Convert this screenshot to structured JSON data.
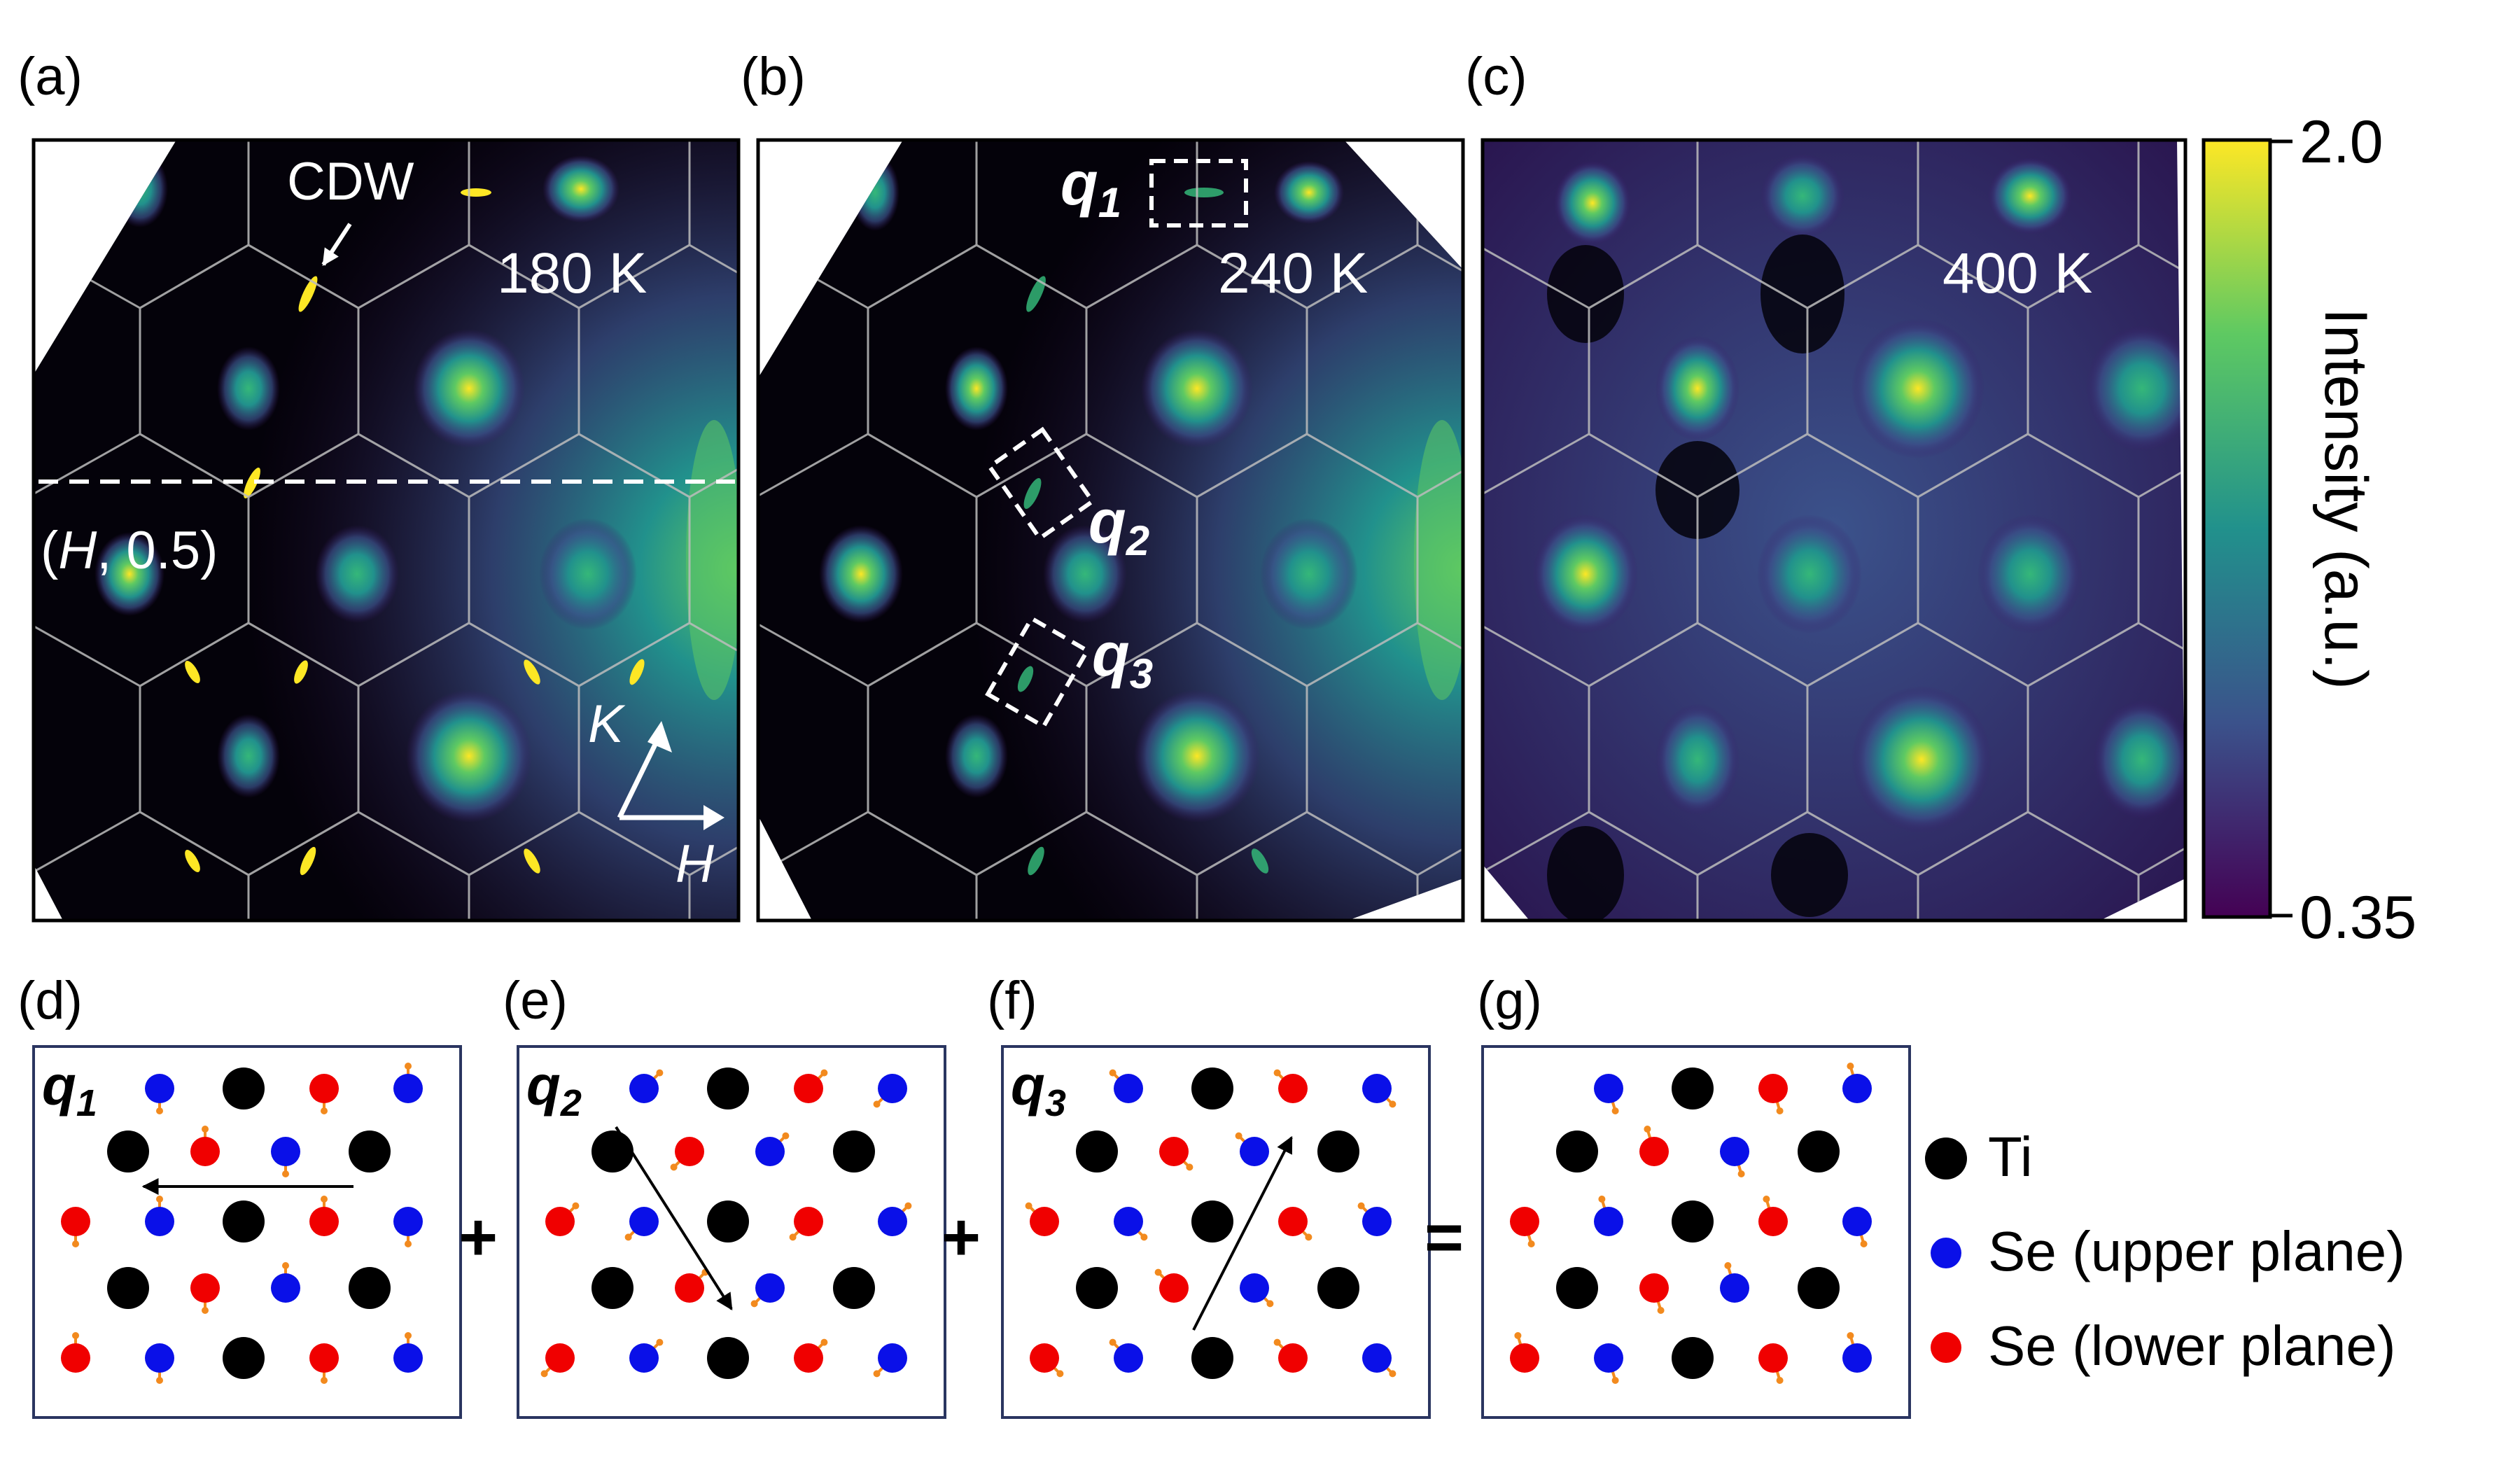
{
  "panel_labels": {
    "a": "(a)",
    "b": "(b)",
    "c": "(c)",
    "d": "(d)",
    "e": "(e)",
    "f": "(f)",
    "g": "(g)"
  },
  "annotations": {
    "cdw": "CDW",
    "cut_label_open": "(",
    "cut_label_H": "H",
    "cut_label_rest": ", 0.5)",
    "axis_K": "K",
    "axis_H": "H"
  },
  "temperatures": {
    "a": "180 K",
    "b": "240 K",
    "c": "400 K"
  },
  "q_labels": {
    "q1": "q",
    "q1_sub": "1",
    "q2": "q",
    "q2_sub": "2",
    "q3": "q",
    "q3_sub": "3"
  },
  "colorbar": {
    "title": "Intensity (a.u.)",
    "max": "2.0",
    "min": "0.35",
    "colormap": [
      "#fde725",
      "#5ec962",
      "#21918c",
      "#3b528b",
      "#440154",
      "#2a0a3b"
    ]
  },
  "operators": {
    "plus1": "+",
    "plus2": "+",
    "equals": "="
  },
  "legend": {
    "ti": "Ti",
    "se_upper": "Se (upper plane)",
    "se_lower": "Se (lower plane)"
  },
  "colors": {
    "ti": "#000000",
    "se_upper": "#0a10e8",
    "se_lower": "#f00000",
    "arrow": "#f28a1e",
    "hex": "#bdbdbd",
    "panel_bg": "#04020a",
    "box_border": "#2a3560"
  }
}
